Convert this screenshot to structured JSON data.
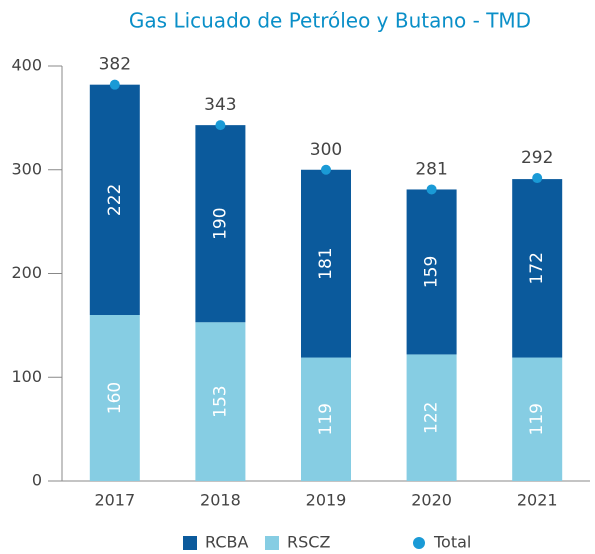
{
  "chart_data": {
    "type": "stacked_bar",
    "title": "Gas Licuado de Petróleo y Butano - TMD",
    "categories": [
      "2017",
      "2018",
      "2019",
      "2020",
      "2021"
    ],
    "series": [
      {
        "name": "RSCZ",
        "color": "#86cde3",
        "values": [
          160,
          153,
          119,
          122,
          119
        ]
      },
      {
        "name": "RCBA",
        "color": "#0b5a9c",
        "values": [
          222,
          190,
          181,
          159,
          172
        ]
      },
      {
        "name": "Total",
        "color": "#1a9ad6",
        "values": [
          382,
          343,
          300,
          281,
          292
        ]
      }
    ],
    "ylim": [
      0,
      400
    ],
    "yticks": [
      0,
      100,
      200,
      300,
      400
    ],
    "grid": false,
    "legend": "bottom"
  }
}
